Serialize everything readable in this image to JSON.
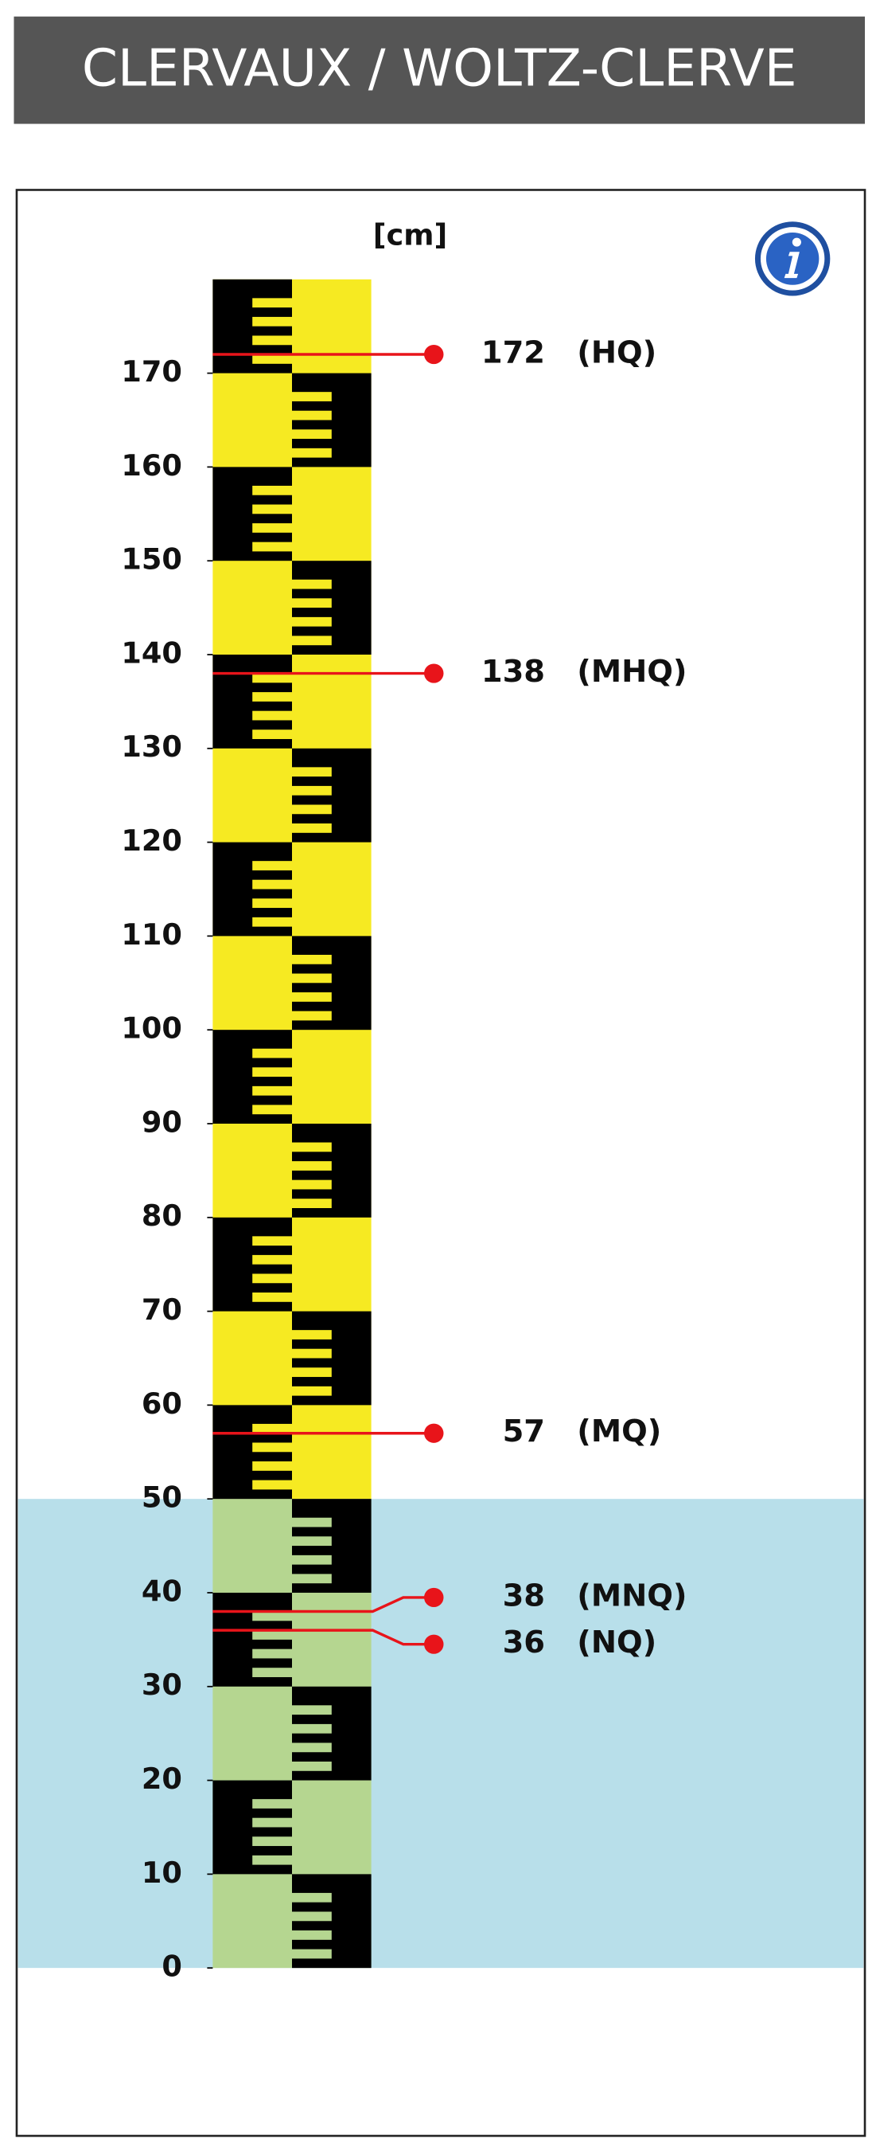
{
  "chart_data": {
    "type": "gauge",
    "title": "CLERVAUX / WOLTZ-CLERVE",
    "unit_label": "[cm]",
    "ylim": [
      0,
      180
    ],
    "yticks": [
      0,
      10,
      20,
      30,
      40,
      50,
      60,
      70,
      80,
      90,
      100,
      110,
      120,
      130,
      140,
      150,
      160,
      170
    ],
    "water_level": 50,
    "water_color": "#b8dfea",
    "scale_color": "#f6ea22",
    "submerged_scale_color": "#b5d690",
    "marker_color": "#e8141a",
    "markers": [
      {
        "name": "(HQ)",
        "value": 172
      },
      {
        "name": "(MHQ)",
        "value": 138
      },
      {
        "name": "(MQ)",
        "value": 57
      },
      {
        "name": "(MNQ)",
        "value": 38
      },
      {
        "name": "(NQ)",
        "value": 36
      }
    ]
  }
}
